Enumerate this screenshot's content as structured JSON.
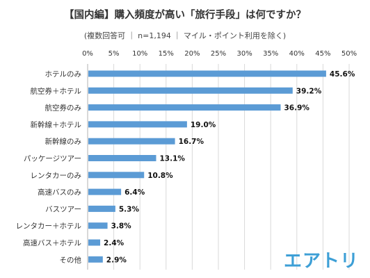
{
  "title": "【国内編】購入頻度が高い「旅行手段」は何ですか？",
  "subtitle": "(複数回答可 ｜ n=1,194 ｜ マイル・ポイント利用を除く)",
  "logo_text": "エアトリ",
  "colors": {
    "bar": "#5b9bd5",
    "grid": "#d9d9d9",
    "axis": "#b0b0b0",
    "logo": "#3d9fd6"
  },
  "chart_data": {
    "type": "bar",
    "orientation": "horizontal",
    "title": "【国内編】購入頻度が高い「旅行手段」は何ですか？",
    "subtitle": "(複数回答可 ｜ n=1,194 ｜ マイル・ポイント利用を除く)",
    "xlim": [
      0,
      50
    ],
    "ticks": [
      0,
      5,
      10,
      15,
      20,
      25,
      30,
      35,
      40,
      45,
      50
    ],
    "tick_labels": [
      "0%",
      "5%",
      "10%",
      "15%",
      "20%",
      "25%",
      "30%",
      "35%",
      "40%",
      "45%",
      "50%"
    ],
    "grid": true,
    "categories": [
      "ホテルのみ",
      "航空券＋ホテル",
      "航空券のみ",
      "新幹線＋ホテル",
      "新幹線のみ",
      "パッケージツアー",
      "レンタカーのみ",
      "高速バスのみ",
      "バスツアー",
      "レンタカー＋ホテル",
      "高速バス＋ホテル",
      "その他"
    ],
    "values": [
      45.6,
      39.2,
      36.9,
      19.0,
      16.7,
      13.1,
      10.8,
      6.4,
      5.3,
      3.8,
      2.4,
      2.9
    ],
    "value_labels": [
      "45.6%",
      "39.2%",
      "36.9%",
      "19.0%",
      "16.7%",
      "13.1%",
      "10.8%",
      "6.4%",
      "5.3%",
      "3.8%",
      "2.4%",
      "2.9%"
    ]
  }
}
